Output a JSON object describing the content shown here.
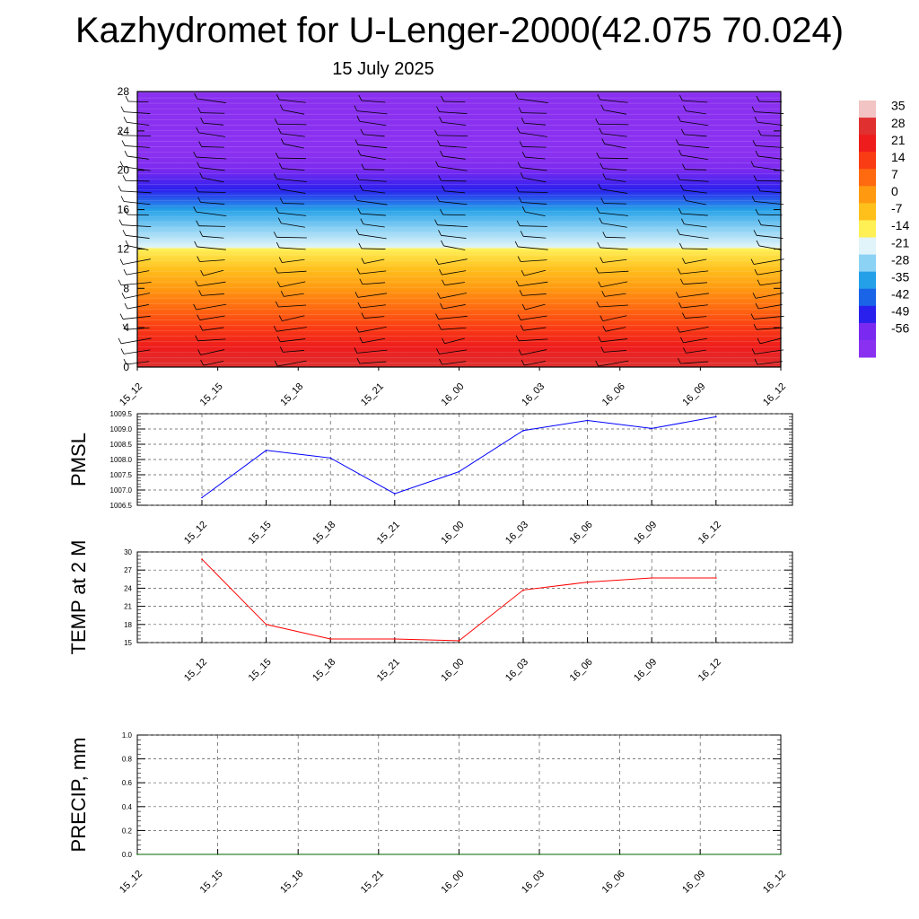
{
  "title": "Kazhydromet for U-Lenger-2000(42.075 70.024)",
  "subtitle": "15 July 2025",
  "chart_data": [
    {
      "type": "heatmap",
      "name": "temperature-height",
      "x_ticks": [
        "15_12",
        "15_15",
        "15_18",
        "15_21",
        "16_00",
        "16_03",
        "16_06",
        "16_09",
        "16_12"
      ],
      "y_ticks": [
        "0",
        "4",
        "8",
        "12",
        "16",
        "20",
        "24",
        "28"
      ],
      "ylim": [
        0,
        28
      ],
      "colorbar_labels": [
        "35",
        "28",
        "21",
        "14",
        "7",
        "0",
        "-7",
        "-14",
        "-21",
        "-28",
        "-35",
        "-42",
        "-49",
        "-56"
      ],
      "colorbar_colors": [
        "#f2c4c4",
        "#e03030",
        "#ee1c1c",
        "#fa3c14",
        "#ff6a10",
        "#ff9a10",
        "#ffc01c",
        "#fff056",
        "#e0f4fa",
        "#8cd2f4",
        "#24a0e8",
        "#1a64e8",
        "#2a20ee",
        "#7a2af0",
        "#8a30f0"
      ],
      "levels": [
        {
          "h": 0,
          "t": 31
        },
        {
          "h": 2,
          "t": 22
        },
        {
          "h": 4,
          "t": 16
        },
        {
          "h": 6,
          "t": 10
        },
        {
          "h": 8,
          "t": 3
        },
        {
          "h": 10,
          "t": -3
        },
        {
          "h": 12,
          "t": -12
        },
        {
          "h": 12.2,
          "t": -18
        },
        {
          "h": 14,
          "t": -26
        },
        {
          "h": 16,
          "t": -33
        },
        {
          "h": 18,
          "t": -42
        },
        {
          "h": 20,
          "t": -52
        },
        {
          "h": 21.5,
          "t": -58
        },
        {
          "h": 22.5,
          "t": -54
        },
        {
          "h": 28,
          "t": -56
        }
      ]
    },
    {
      "type": "line",
      "name": "pmsl",
      "ylabel": "PMSL",
      "x": [
        "15_12",
        "15_15",
        "15_18",
        "15_21",
        "16_00",
        "16_03",
        "16_06",
        "16_09",
        "16_12"
      ],
      "values": [
        1006.75,
        1008.3,
        1008.05,
        1006.88,
        1007.6,
        1008.95,
        1009.28,
        1009.02,
        1009.4
      ],
      "y_ticks": [
        "1006.5",
        "1007.0",
        "1007.5",
        "1008.0",
        "1008.5",
        "1009.0",
        "1009.5"
      ],
      "ylim": [
        1006.5,
        1009.5
      ],
      "color": "#0000ff"
    },
    {
      "type": "line",
      "name": "temp2m",
      "ylabel": "TEMP at 2 M",
      "x": [
        "15_12",
        "15_15",
        "15_18",
        "15_21",
        "16_00",
        "16_03",
        "16_06",
        "16_09",
        "16_12"
      ],
      "values": [
        28.8,
        18.0,
        15.6,
        15.6,
        15.3,
        23.7,
        25.0,
        25.7,
        25.7
      ],
      "y_ticks": [
        "15",
        "18",
        "21",
        "24",
        "27",
        "30"
      ],
      "ylim": [
        15,
        30
      ],
      "color": "#ff0000"
    },
    {
      "type": "line",
      "name": "precip",
      "ylabel": "PRECIP, mm",
      "x": [
        "15_12",
        "15_15",
        "15_18",
        "15_21",
        "16_00",
        "16_03",
        "16_06",
        "16_09",
        "16_12"
      ],
      "values": [
        0,
        0,
        0,
        0,
        0,
        0,
        0,
        0,
        0
      ],
      "y_ticks": [
        "0.0",
        "0.2",
        "0.4",
        "0.6",
        "0.8",
        "1.0"
      ],
      "ylim": [
        0,
        1
      ],
      "color": "#006400"
    }
  ]
}
